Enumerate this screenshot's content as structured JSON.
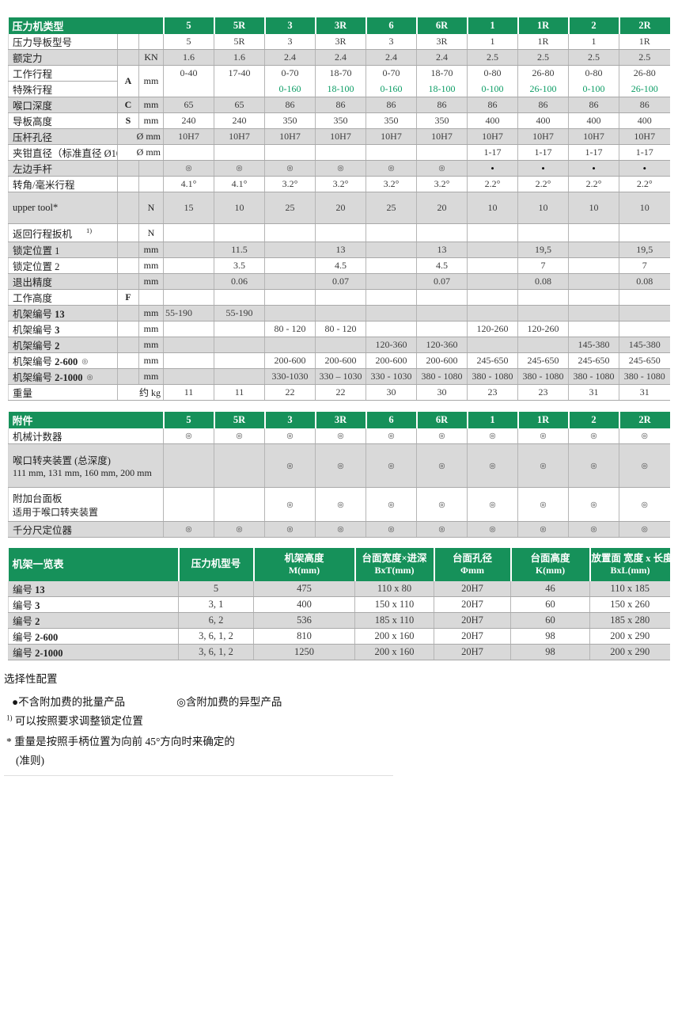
{
  "colors": {
    "header_green": "#16915a",
    "row_gray": "#d9d9d9",
    "special_green": "#0a9c64"
  },
  "symbols": {
    "ring": "◎",
    "bullet": "•",
    "filled": "●"
  },
  "spec": {
    "title": "压力机类型",
    "cols": [
      "5",
      "5R",
      "3",
      "3R",
      "6",
      "6R",
      "1",
      "1R",
      "2",
      "2R"
    ],
    "rows": [
      {
        "label": "压力导板型号",
        "shaded": false,
        "letter": "",
        "unit": "",
        "values": [
          "5",
          "5R",
          "3",
          "3R",
          "3",
          "3R",
          "1",
          "1R",
          "1",
          "1R"
        ]
      },
      {
        "label": "额定力",
        "shaded": true,
        "letter": "",
        "unit": "KN",
        "values": [
          "1.6",
          "1.6",
          "2.4",
          "2.4",
          "2.4",
          "2.4",
          "2.5",
          "2.5",
          "2.5",
          "2.5"
        ]
      },
      {
        "label": "工作行程",
        "shaded": false,
        "letter": "A",
        "letter_span": 2,
        "unit": "mm",
        "unit_span": 2,
        "no_bottom": true,
        "values": [
          "0-40",
          "17-40",
          "0-70",
          "18-70",
          "0-70",
          "18-70",
          "0-80",
          "26-80",
          "0-80",
          "26-80"
        ]
      },
      {
        "label": "特殊行程",
        "shaded": false,
        "skip_units": true,
        "special": true,
        "values": [
          "",
          "",
          "0-160",
          "18-100",
          "0-160",
          "18-100",
          "0-100",
          "26-100",
          "0-100",
          "26-100"
        ]
      },
      {
        "label": "喉口深度",
        "shaded": true,
        "letter": "C",
        "unit": "mm",
        "values": [
          "65",
          "65",
          "86",
          "86",
          "86",
          "86",
          "86",
          "86",
          "86",
          "86"
        ]
      },
      {
        "label": "导板高度",
        "shaded": false,
        "letter": "S",
        "unit": "mm",
        "values": [
          "240",
          "240",
          "350",
          "350",
          "350",
          "350",
          "400",
          "400",
          "400",
          "400"
        ]
      },
      {
        "label": "压杆孔径",
        "shaded": true,
        "unit": "Ø mm",
        "unit_colspan": 2,
        "values": [
          "10H7",
          "10H7",
          "10H7",
          "10H7",
          "10H7",
          "10H7",
          "10H7",
          "10H7",
          "10H7",
          "10H7"
        ]
      },
      {
        "label": "夹钳直径（标准直径 Ø10）",
        "shaded": false,
        "unit": "Ø mm",
        "unit_colspan": 2,
        "values": [
          "",
          "",
          "",
          "",
          "",
          "",
          "1-17",
          "1-17",
          "1-17",
          "1-17"
        ]
      },
      {
        "label": "左边手杆",
        "shaded": true,
        "letter": "",
        "unit": "",
        "values": [
          "◎",
          "◎",
          "◎",
          "◎",
          "◎",
          "◎",
          "•",
          "•",
          "•",
          "•"
        ]
      },
      {
        "label": "转角/毫米行程",
        "shaded": false,
        "letter": "",
        "unit": "",
        "values": [
          "4.1°",
          "4.1°",
          "3.2°",
          "3.2°",
          "3.2°",
          "3.2°",
          "2.2°",
          "2.2°",
          "2.2°",
          "2.2°"
        ]
      },
      {
        "label": "upper tool*",
        "shaded": true,
        "letter": "",
        "unit": "N",
        "values": [
          "15",
          "10",
          "25",
          "20",
          "25",
          "20",
          "10",
          "10",
          "10",
          "10"
        ]
      },
      {
        "label": "返回行程扳机",
        "sup": "1)",
        "shaded": false,
        "letter": "",
        "unit": "N",
        "values": [
          "",
          "",
          "",
          "",
          "",
          "",
          "",
          "",
          "",
          ""
        ]
      },
      {
        "label": "锁定位置 1",
        "shaded": true,
        "letter": "",
        "unit": "mm",
        "values": [
          "",
          "11.5",
          "",
          "13",
          "",
          "13",
          "",
          "19,5",
          "",
          "19,5"
        ]
      },
      {
        "label": "锁定位置 2",
        "shaded": false,
        "letter": "",
        "unit": "mm",
        "values": [
          "",
          "3.5",
          "",
          "4.5",
          "",
          "4.5",
          "",
          "7",
          "",
          "7"
        ]
      },
      {
        "label": "退出精度",
        "shaded": true,
        "letter": "",
        "unit": "mm",
        "values": [
          "",
          "0.06",
          "",
          "0.07",
          "",
          "0.07",
          "",
          "0.08",
          "",
          "0.08"
        ]
      },
      {
        "label": "工作高度",
        "shaded": false,
        "letter": "F",
        "unit": "",
        "values": [
          "",
          "",
          "",
          "",
          "",
          "",
          "",
          "",
          "",
          ""
        ]
      },
      {
        "label": "机架编号 ",
        "label_b": "13",
        "shaded": true,
        "letter": "",
        "unit": "mm",
        "left_first": true,
        "values": [
          "55-190",
          "55-190",
          "",
          "",
          "",
          "",
          "",
          "",
          "",
          ""
        ]
      },
      {
        "label": "机架编号 ",
        "label_b": "3",
        "shaded": false,
        "letter": "",
        "unit": "mm",
        "values": [
          "",
          "",
          "80 - 120",
          "80 - 120",
          "",
          "",
          "120-260",
          "120-260",
          "",
          ""
        ]
      },
      {
        "label": "机架编号 ",
        "label_b": "2",
        "shaded": true,
        "letter": "",
        "unit": "mm",
        "values": [
          "",
          "",
          "",
          "",
          "120-360",
          "120-360",
          "",
          "",
          "145-380",
          "145-380"
        ]
      },
      {
        "label": "机架编号 ",
        "label_b": "2-600",
        "label_sym": "◎",
        "shaded": false,
        "letter": "",
        "unit": "mm",
        "values": [
          "",
          "",
          "200-600",
          "200-600",
          "200-600",
          "200-600",
          "245-650",
          "245-650",
          "245-650",
          "245-650"
        ]
      },
      {
        "label": "机架编号 ",
        "label_b": "2-1000",
        "label_sym": "◎",
        "shaded": true,
        "letter": "",
        "unit": "mm",
        "values": [
          "",
          "",
          "330-1030",
          "330 – 1030",
          "330 - 1030",
          "380 - 1080",
          "380 - 1080",
          "380 - 1080",
          "380 - 1080",
          "380 - 1080"
        ]
      },
      {
        "label": "重量",
        "shaded": false,
        "unit": "约 kg",
        "unit_colspan": 2,
        "values": [
          "11",
          "11",
          "22",
          "22",
          "30",
          "30",
          "23",
          "23",
          "31",
          "31"
        ]
      }
    ]
  },
  "accessories": {
    "title": "附件",
    "cols": [
      "5",
      "5R",
      "3",
      "3R",
      "6",
      "6R",
      "1",
      "1R",
      "2",
      "2R"
    ],
    "rows": [
      {
        "label": "机械计数器",
        "label2": "",
        "shaded": false,
        "values": [
          "◎",
          "◎",
          "◎",
          "◎",
          "◎",
          "◎",
          "◎",
          "◎",
          "◎",
          "◎"
        ]
      },
      {
        "label": "喉口转夹装置 (总深度)",
        "label2": "111 mm, 131 mm, 160 mm, 200 mm",
        "shaded": true,
        "values": [
          "",
          "",
          "◎",
          "◎",
          "◎",
          "◎",
          "◎",
          "◎",
          "◎",
          "◎"
        ]
      },
      {
        "label": "附加台面板",
        "label2": "适用于喉口转夹装置",
        "shaded": false,
        "values": [
          "",
          "",
          "◎",
          "◎",
          "◎",
          "◎",
          "◎",
          "◎",
          "◎",
          "◎"
        ]
      },
      {
        "label": "千分尺定位器",
        "label2": "",
        "shaded": true,
        "values": [
          "◎",
          "◎",
          "◎",
          "◎",
          "◎",
          "◎",
          "◎",
          "◎",
          "◎",
          "◎"
        ]
      }
    ]
  },
  "frames": {
    "title": "机架一览表",
    "cols": [
      {
        "l1": "压力机型号",
        "l2": ""
      },
      {
        "l1": "机架高度",
        "l2": "M(mm)"
      },
      {
        "l1": "台面宽度×进深",
        "l2": "BxT(mm)"
      },
      {
        "l1": "台面孔径",
        "l2": "Φmm"
      },
      {
        "l1": "台面高度",
        "l2": "K(mm)"
      },
      {
        "l1": "放置面 宽度 x 长度",
        "l2": "BxL(mm)"
      }
    ],
    "rows": [
      {
        "label": "编号 ",
        "label_b": "13",
        "shaded": true,
        "values": [
          "5",
          "475",
          "110 x 80",
          "20H7",
          "46",
          "110 x 185"
        ]
      },
      {
        "label": "编号 ",
        "label_b": "3",
        "shaded": false,
        "values": [
          "3, 1",
          "400",
          "150 x 110",
          "20H7",
          "60",
          "150 x 260"
        ]
      },
      {
        "label": "编号 ",
        "label_b": "2",
        "shaded": true,
        "values": [
          "6, 2",
          "536",
          "185 x 110",
          "20H7",
          "60",
          "185 x 280"
        ]
      },
      {
        "label": "编号 ",
        "label_b": "2-600",
        "shaded": false,
        "values": [
          "3, 6, 1, 2",
          "810",
          "200 x 160",
          "20H7",
          "98",
          "200 x 290"
        ]
      },
      {
        "label": "编号 ",
        "label_b": "2-1000",
        "shaded": true,
        "values": [
          "3, 6, 1, 2",
          "1250",
          "200 x 160",
          "20H7",
          "98",
          "200 x 290"
        ]
      }
    ]
  },
  "notes": {
    "title": "选择性配置",
    "legend": [
      {
        "sym": "●",
        "text": "不含附加费的批量产品"
      },
      {
        "sym": "◎",
        "text": "含附加费的异型产品"
      }
    ],
    "sup_mark": "1)",
    "sup_text": " 可以按照要求调整锁定位置",
    "star_text": "* 重量是按照手柄位置为向前 45°方向时来确定的",
    "paren_text": "(准则)"
  }
}
